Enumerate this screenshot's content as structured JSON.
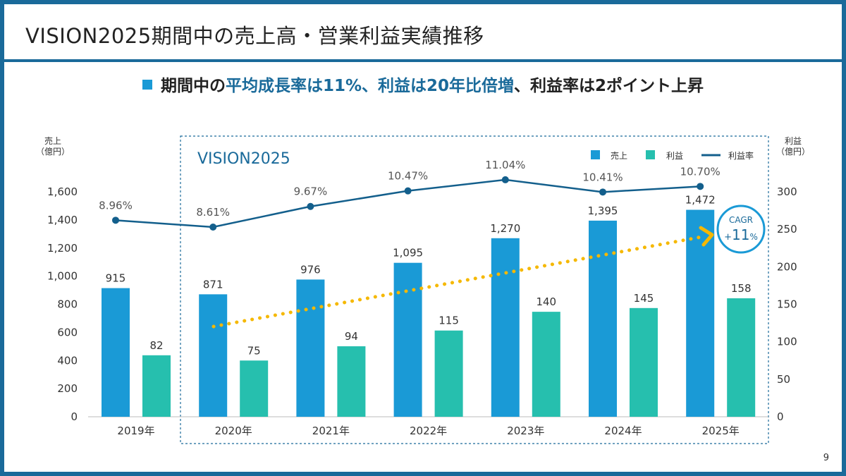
{
  "title": "VISION2025期間中の売上高・営業利益実績推移",
  "subtitle": {
    "part1": "期間中の",
    "part2": "平均成長率は11%、利益は20年比倍増",
    "part3": "、利益率は2ポイント上昇"
  },
  "page_number": "9",
  "colors": {
    "frame": "#1a6a9a",
    "sales": "#1a9ad6",
    "profit": "#26bfae",
    "margin_line": "#135f8c",
    "arrow": "#f5b800",
    "cagr_circle": "#1a9ad6"
  },
  "chart_data": {
    "type": "bar",
    "categories": [
      "2019年",
      "2020年",
      "2021年",
      "2022年",
      "2023年",
      "2024年",
      "2025年"
    ],
    "series": [
      {
        "name": "売上",
        "type": "bar",
        "axis": "left",
        "values": [
          915,
          871,
          976,
          1095,
          1270,
          1395,
          1472
        ],
        "labels": [
          "915",
          "871",
          "976",
          "1,095",
          "1,270",
          "1,395",
          "1,472"
        ]
      },
      {
        "name": "利益",
        "type": "bar",
        "axis": "right",
        "values": [
          82,
          75,
          94,
          115,
          140,
          145,
          158
        ],
        "labels": [
          "82",
          "75",
          "94",
          "115",
          "140",
          "145",
          "158"
        ]
      },
      {
        "name": "利益率",
        "type": "line",
        "values": [
          8.96,
          8.61,
          9.67,
          10.47,
          11.04,
          10.41,
          10.7
        ],
        "labels": [
          "8.96%",
          "8.61%",
          "9.67%",
          "10.47%",
          "11.04%",
          "10.41%",
          "10.70%"
        ]
      }
    ],
    "left_axis": {
      "label_line1": "売上",
      "label_line2": "（億円）",
      "range": [
        0,
        1600
      ],
      "ticks": [
        "0",
        "200",
        "400",
        "600",
        "800",
        "1,000",
        "1,200",
        "1,400",
        "1,600"
      ]
    },
    "right_axis": {
      "label_line1": "利益",
      "label_line2": "（億円）",
      "range": [
        0,
        300
      ],
      "ticks": [
        "0",
        "50",
        "100",
        "150",
        "200",
        "250",
        "300"
      ]
    },
    "legend": {
      "position": "top-right",
      "items": [
        "売上",
        "利益",
        "利益率"
      ]
    },
    "grid": false,
    "period_box_label": "VISION2025",
    "cagr": {
      "label": "CAGR",
      "sign": "+",
      "value": "11",
      "unit": "%"
    }
  }
}
